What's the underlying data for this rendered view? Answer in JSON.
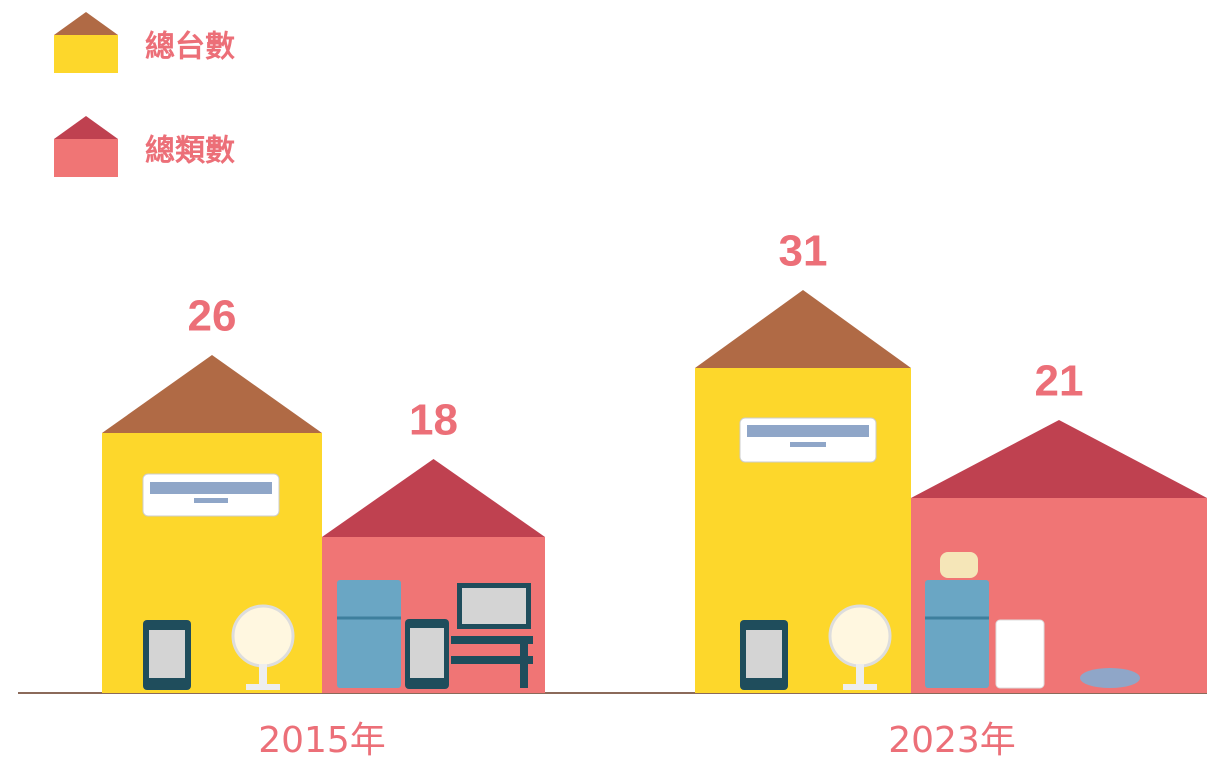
{
  "chart_data": {
    "type": "house-bar",
    "categories": [
      "2015年",
      "2023年"
    ],
    "series": [
      {
        "name": "總台數",
        "color": "#fdd72b",
        "roof_color": "#b06a45",
        "values": [
          26,
          31
        ]
      },
      {
        "name": "總類數",
        "color": "#f07575",
        "roof_color": "#bf4150",
        "values": [
          18,
          21
        ]
      }
    ]
  }
}
